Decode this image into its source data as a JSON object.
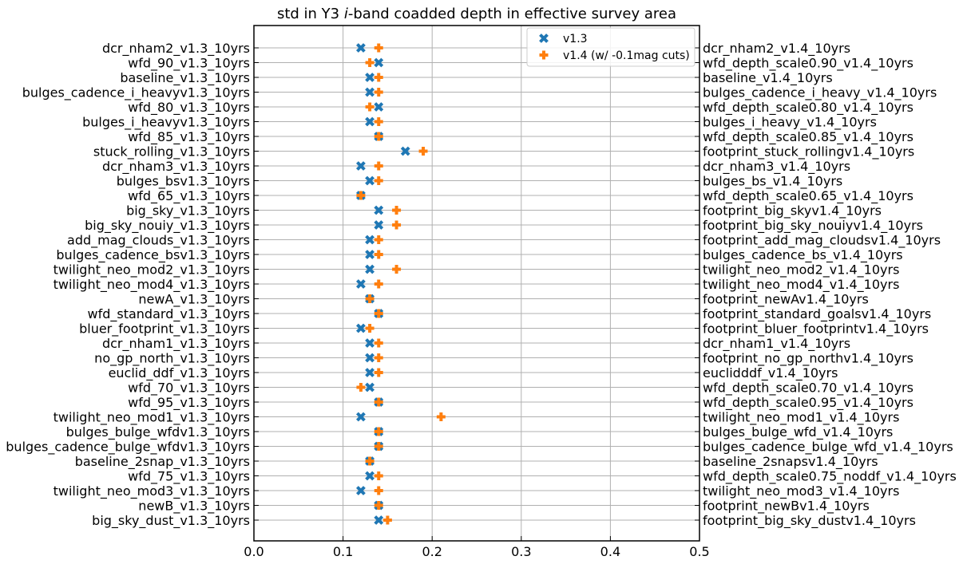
{
  "chart_data": {
    "type": "scatter",
    "title_prefix": "std in Y3 ",
    "title_italic": "i",
    "title_suffix": "-band coadded depth in effective survey area",
    "xlim": [
      0.0,
      0.5
    ],
    "xticks": [
      0.0,
      0.1,
      0.2,
      0.3,
      0.4,
      0.5
    ],
    "xtick_labels": [
      "0.0",
      "0.1",
      "0.2",
      "0.3",
      "0.4",
      "0.5"
    ],
    "grid": true,
    "legend_position": "top-right",
    "categories_left": [
      "dcr_nham2_v1.3_10yrs",
      "wfd_90_v1.3_10yrs",
      "baseline_v1.3_10yrs",
      "bulges_cadence_i_heavyv1.3_10yrs",
      "wfd_80_v1.3_10yrs",
      "bulges_i_heavyv1.3_10yrs",
      "wfd_85_v1.3_10yrs",
      "stuck_rolling_v1.3_10yrs",
      "dcr_nham3_v1.3_10yrs",
      "bulges_bsv1.3_10yrs",
      "wfd_65_v1.3_10yrs",
      "big_sky_v1.3_10yrs",
      "big_sky_nouiy_v1.3_10yrs",
      "add_mag_clouds_v1.3_10yrs",
      "bulges_cadence_bsv1.3_10yrs",
      "twilight_neo_mod2_v1.3_10yrs",
      "twilight_neo_mod4_v1.3_10yrs",
      "newA_v1.3_10yrs",
      "wfd_standard_v1.3_10yrs",
      "bluer_footprint_v1.3_10yrs",
      "dcr_nham1_v1.3_10yrs",
      "no_gp_north_v1.3_10yrs",
      "euclid_ddf_v1.3_10yrs",
      "wfd_70_v1.3_10yrs",
      "wfd_95_v1.3_10yrs",
      "twilight_neo_mod1_v1.3_10yrs",
      "bulges_bulge_wfdv1.3_10yrs",
      "bulges_cadence_bulge_wfdv1.3_10yrs",
      "baseline_2snap_v1.3_10yrs",
      "wfd_75_v1.3_10yrs",
      "twilight_neo_mod3_v1.3_10yrs",
      "newB_v1.3_10yrs",
      "big_sky_dust_v1.3_10yrs"
    ],
    "categories_right": [
      "dcr_nham2_v1.4_10yrs",
      "wfd_depth_scale0.90_v1.4_10yrs",
      "baseline_v1.4_10yrs",
      "bulges_cadence_i_heavy_v1.4_10yrs",
      "wfd_depth_scale0.80_v1.4_10yrs",
      "bulges_i_heavy_v1.4_10yrs",
      "wfd_depth_scale0.85_v1.4_10yrs",
      "footprint_stuck_rollingv1.4_10yrs",
      "dcr_nham3_v1.4_10yrs",
      "bulges_bs_v1.4_10yrs",
      "wfd_depth_scale0.65_v1.4_10yrs",
      "footprint_big_skyv1.4_10yrs",
      "footprint_big_sky_nouiyv1.4_10yrs",
      "footprint_add_mag_cloudsv1.4_10yrs",
      "bulges_cadence_bs_v1.4_10yrs",
      "twilight_neo_mod2_v1.4_10yrs",
      "twilight_neo_mod4_v1.4_10yrs",
      "footprint_newAv1.4_10yrs",
      "footprint_standard_goalsv1.4_10yrs",
      "footprint_bluer_footprintv1.4_10yrs",
      "dcr_nham1_v1.4_10yrs",
      "footprint_no_gp_northv1.4_10yrs",
      "euclidddf_v1.4_10yrs",
      "wfd_depth_scale0.70_v1.4_10yrs",
      "wfd_depth_scale0.95_v1.4_10yrs",
      "twilight_neo_mod1_v1.4_10yrs",
      "bulges_bulge_wfd_v1.4_10yrs",
      "bulges_cadence_bulge_wfd_v1.4_10yrs",
      "baseline_2snapsv1.4_10yrs",
      "wfd_depth_scale0.75_noddf_v1.4_10yrs",
      "twilight_neo_mod3_v1.4_10yrs",
      "footprint_newBv1.4_10yrs",
      "footprint_big_sky_dustv1.4_10yrs"
    ],
    "series": [
      {
        "name": "v1.3",
        "marker": "x",
        "color": "#1f77b4",
        "values": [
          0.12,
          0.14,
          0.13,
          0.13,
          0.14,
          0.13,
          0.14,
          0.17,
          0.12,
          0.13,
          0.12,
          0.14,
          0.14,
          0.13,
          0.13,
          0.13,
          0.12,
          0.13,
          0.14,
          0.12,
          0.13,
          0.13,
          0.13,
          0.13,
          0.14,
          0.12,
          0.14,
          0.14,
          0.13,
          0.13,
          0.12,
          0.14,
          0.14
        ]
      },
      {
        "name": "v1.4 (w/ -0.1mag cuts)",
        "marker": "plus",
        "color": "#ff7f0e",
        "values": [
          0.14,
          0.13,
          0.14,
          0.14,
          0.13,
          0.14,
          0.14,
          0.19,
          0.14,
          0.14,
          0.12,
          0.16,
          0.16,
          0.14,
          0.14,
          0.16,
          0.14,
          0.13,
          0.14,
          0.13,
          0.14,
          0.14,
          0.14,
          0.12,
          0.14,
          0.21,
          0.14,
          0.14,
          0.13,
          0.14,
          0.14,
          0.14,
          0.15
        ]
      }
    ]
  }
}
